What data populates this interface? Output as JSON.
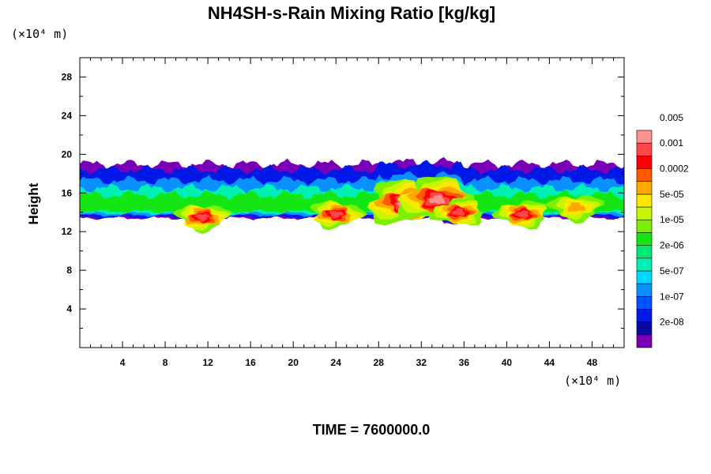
{
  "chart_data": {
    "type": "heatmap",
    "title": "NH4SH-s-Rain Mixing Ratio [kg/kg]",
    "ylabel": "Height",
    "x_unit_label": "(×10⁴ m)",
    "y_unit_label": "(×10⁴ m)",
    "time_label": "TIME = 7600000.0",
    "xlim": [
      0,
      51
    ],
    "ylim": [
      0,
      30
    ],
    "x_ticks": [
      4,
      8,
      12,
      16,
      20,
      24,
      28,
      32,
      36,
      40,
      44,
      48
    ],
    "y_ticks": [
      4,
      8,
      12,
      16,
      20,
      24,
      28
    ],
    "colorbar": {
      "colors": [
        "#7a00b8",
        "#0a0aa0",
        "#0019e6",
        "#0050ff",
        "#0a90ff",
        "#00d8ff",
        "#00f0b4",
        "#00e878",
        "#14e614",
        "#7cf000",
        "#c8f500",
        "#ffe800",
        "#ffa800",
        "#ff5a00",
        "#ff0000",
        "#ff4646",
        "#ff9090"
      ],
      "tick_labels": [
        "2e-08",
        "1e-07",
        "5e-07",
        "2e-06",
        "1e-05",
        "5e-05",
        "0.0002",
        "0.001",
        "0.005"
      ]
    },
    "field_description_bands": [
      {
        "level_index": 0,
        "x": [
          0,
          51
        ],
        "y_bottom_base": 13.4,
        "y_top_base": 19.0
      },
      {
        "level_index": 2,
        "x": [
          0,
          51
        ],
        "y_bottom_base": 13.5,
        "y_top_base": 18.4
      },
      {
        "level_index": 4,
        "x": [
          0,
          51
        ],
        "y_bottom_base": 13.7,
        "y_top_base": 17.3
      },
      {
        "level_index": 6,
        "x": [
          0,
          51
        ],
        "y_bottom_base": 13.9,
        "y_top_base": 16.5
      },
      {
        "level_index": 8,
        "x": [
          0,
          51
        ],
        "y_bottom_base": 14.1,
        "y_top_base": 15.8
      }
    ],
    "hotspots": [
      {
        "x": 11.5,
        "y": 13.5,
        "max_level": 14
      },
      {
        "x": 24.0,
        "y": 13.8,
        "max_level": 14
      },
      {
        "x": 30.5,
        "y": 15.0,
        "max_level": 15
      },
      {
        "x": 33.5,
        "y": 15.3,
        "max_level": 15
      },
      {
        "x": 35.5,
        "y": 14.0,
        "max_level": 14
      },
      {
        "x": 41.5,
        "y": 13.8,
        "max_level": 14
      },
      {
        "x": 46.5,
        "y": 14.5,
        "max_level": 11
      }
    ]
  }
}
